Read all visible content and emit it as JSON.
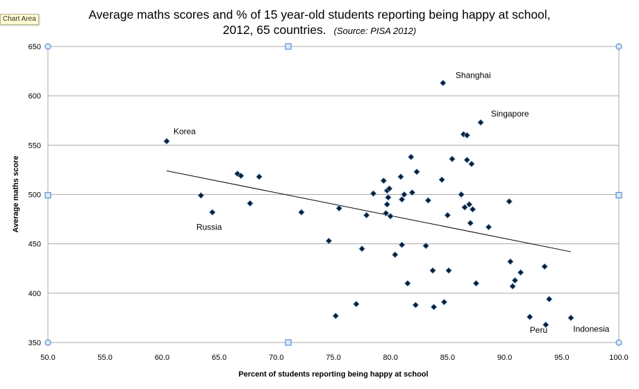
{
  "chart_area_label": "Chart Area",
  "colors": {
    "grid": "#a9a9a9",
    "marker": "#0b1f33",
    "marker_stroke": "#7fa8d4",
    "trend": "#000000",
    "handle_stroke": "#5b8fd0",
    "handle_fill": "#dbe8f8"
  },
  "chart_data": {
    "type": "scatter",
    "title_line1": "Average maths scores and % of 15 year-old students reporting being happy at school,",
    "title_line2": "2012, 65 countries.",
    "title_source": "(Source: PISA 2012)",
    "xlabel": "Percent of students reporting being happy at school",
    "ylabel": "Average maths score",
    "xlim": [
      50,
      100
    ],
    "ylim": [
      350,
      650
    ],
    "x_ticks": [
      "50.0",
      "55.0",
      "60.0",
      "65.0",
      "70.0",
      "75.0",
      "80.0",
      "85.0",
      "90.0",
      "95.0",
      "100.0"
    ],
    "y_ticks": [
      "350",
      "400",
      "450",
      "500",
      "550",
      "600",
      "650"
    ],
    "grid": true,
    "points": [
      {
        "x": 60.4,
        "y": 554
      },
      {
        "x": 63.4,
        "y": 499
      },
      {
        "x": 64.4,
        "y": 482
      },
      {
        "x": 66.6,
        "y": 521
      },
      {
        "x": 66.9,
        "y": 519
      },
      {
        "x": 67.7,
        "y": 491
      },
      {
        "x": 68.5,
        "y": 518
      },
      {
        "x": 72.2,
        "y": 482
      },
      {
        "x": 74.6,
        "y": 453
      },
      {
        "x": 75.2,
        "y": 377
      },
      {
        "x": 75.5,
        "y": 486
      },
      {
        "x": 77.0,
        "y": 389
      },
      {
        "x": 77.5,
        "y": 445
      },
      {
        "x": 77.9,
        "y": 479
      },
      {
        "x": 78.5,
        "y": 501
      },
      {
        "x": 79.4,
        "y": 514
      },
      {
        "x": 79.6,
        "y": 481
      },
      {
        "x": 79.7,
        "y": 504
      },
      {
        "x": 79.7,
        "y": 490
      },
      {
        "x": 79.8,
        "y": 497
      },
      {
        "x": 79.9,
        "y": 506
      },
      {
        "x": 80.0,
        "y": 478
      },
      {
        "x": 80.4,
        "y": 439
      },
      {
        "x": 80.9,
        "y": 518
      },
      {
        "x": 81.0,
        "y": 449
      },
      {
        "x": 81.0,
        "y": 495
      },
      {
        "x": 81.2,
        "y": 500
      },
      {
        "x": 81.5,
        "y": 410
      },
      {
        "x": 81.8,
        "y": 538
      },
      {
        "x": 81.9,
        "y": 502
      },
      {
        "x": 82.2,
        "y": 388
      },
      {
        "x": 82.3,
        "y": 523
      },
      {
        "x": 83.1,
        "y": 448
      },
      {
        "x": 83.3,
        "y": 494
      },
      {
        "x": 83.7,
        "y": 423
      },
      {
        "x": 83.8,
        "y": 386
      },
      {
        "x": 84.5,
        "y": 515
      },
      {
        "x": 84.6,
        "y": 613
      },
      {
        "x": 84.7,
        "y": 391
      },
      {
        "x": 85.0,
        "y": 479
      },
      {
        "x": 85.1,
        "y": 423
      },
      {
        "x": 85.4,
        "y": 536
      },
      {
        "x": 86.2,
        "y": 500
      },
      {
        "x": 86.4,
        "y": 561
      },
      {
        "x": 86.5,
        "y": 487
      },
      {
        "x": 86.7,
        "y": 560
      },
      {
        "x": 86.7,
        "y": 535
      },
      {
        "x": 86.9,
        "y": 490
      },
      {
        "x": 87.0,
        "y": 471
      },
      {
        "x": 87.1,
        "y": 531
      },
      {
        "x": 87.2,
        "y": 485
      },
      {
        "x": 87.5,
        "y": 410
      },
      {
        "x": 87.9,
        "y": 573
      },
      {
        "x": 88.6,
        "y": 467
      },
      {
        "x": 90.4,
        "y": 493
      },
      {
        "x": 90.5,
        "y": 432
      },
      {
        "x": 90.7,
        "y": 407
      },
      {
        "x": 90.9,
        "y": 413
      },
      {
        "x": 91.4,
        "y": 421
      },
      {
        "x": 92.2,
        "y": 376
      },
      {
        "x": 93.5,
        "y": 427
      },
      {
        "x": 93.6,
        "y": 368
      },
      {
        "x": 93.9,
        "y": 394
      },
      {
        "x": 95.8,
        "y": 375
      }
    ],
    "trendline": {
      "x_start": 60.4,
      "y_start": 524,
      "x_end": 95.8,
      "y_end": 442
    },
    "annotations": [
      {
        "text": "Korea",
        "x": 61.0,
        "y": 561
      },
      {
        "text": "Russia",
        "x": 63.0,
        "y": 464
      },
      {
        "text": "Shanghai",
        "x": 85.7,
        "y": 618
      },
      {
        "text": "Singapore",
        "x": 88.8,
        "y": 579
      },
      {
        "text": "Peru",
        "x": 92.2,
        "y": 360
      },
      {
        "text": "Indonesia",
        "x": 96.0,
        "y": 361
      }
    ]
  }
}
